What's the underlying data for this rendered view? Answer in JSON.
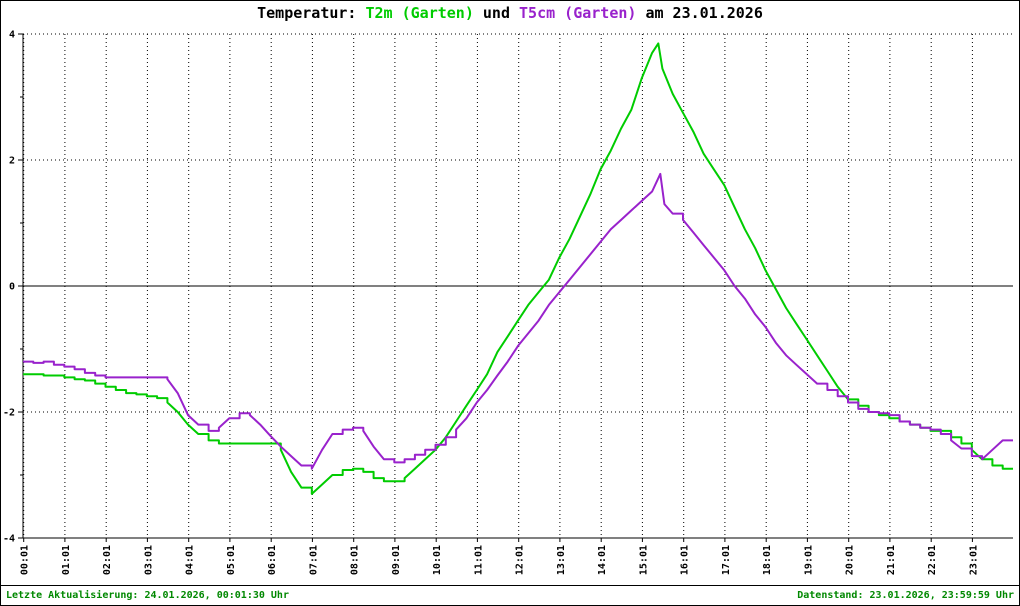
{
  "title": {
    "prefix": "Temperatur: ",
    "series1": "T2m (Garten)",
    "mid": " und ",
    "series2": "T5cm (Garten)",
    "suffix": " am 23.01.2026"
  },
  "colors": {
    "t2m": "#00cc00",
    "t5cm": "#9922cc",
    "footer_text": "#008800",
    "axis": "#000000",
    "background": "#ffffff"
  },
  "footer": {
    "left": "Letzte Aktualisierung: 24.01.2026, 00:01:30 Uhr",
    "right": "Datenstand: 23.01.2026, 23:59:59 Uhr"
  },
  "chart_data": {
    "type": "line",
    "title": "Temperatur: T2m (Garten) und T5cm (Garten) am 23.01.2026",
    "xlabel": "",
    "ylabel": "",
    "ylim": [
      -4,
      4
    ],
    "xlim_hours": [
      0,
      24
    ],
    "yticks": [
      -4,
      -2,
      0,
      2,
      4
    ],
    "yticks_minor": [
      -3,
      -1,
      1,
      3
    ],
    "grid": "dotted",
    "legend_position": "in-title",
    "xtick_labels": [
      "00:01",
      "01:01",
      "02:01",
      "03:01",
      "04:01",
      "05:01",
      "06:01",
      "07:01",
      "08:01",
      "09:01",
      "10:01",
      "11:01",
      "12:01",
      "13:01",
      "14:01",
      "15:01",
      "16:01",
      "17:01",
      "18:01",
      "19:01",
      "20:01",
      "21:01",
      "22:01",
      "23:01"
    ],
    "series": [
      {
        "key": "t2m",
        "name": "T2m (Garten)",
        "color": "#00cc00",
        "points": [
          [
            0,
            -1.4
          ],
          [
            0.25,
            -1.4
          ],
          [
            0.5,
            -1.42
          ],
          [
            0.75,
            -1.42
          ],
          [
            1,
            -1.45
          ],
          [
            1.25,
            -1.48
          ],
          [
            1.5,
            -1.5
          ],
          [
            1.75,
            -1.55
          ],
          [
            2,
            -1.6
          ],
          [
            2.25,
            -1.65
          ],
          [
            2.5,
            -1.7
          ],
          [
            2.75,
            -1.72
          ],
          [
            3,
            -1.75
          ],
          [
            3.25,
            -1.78
          ],
          [
            3.5,
            -1.85
          ],
          [
            3.75,
            -2.0
          ],
          [
            4,
            -2.2
          ],
          [
            4.25,
            -2.35
          ],
          [
            4.5,
            -2.45
          ],
          [
            4.75,
            -2.5
          ],
          [
            5,
            -2.5
          ],
          [
            5.25,
            -2.5
          ],
          [
            5.5,
            -2.5
          ],
          [
            5.75,
            -2.5
          ],
          [
            6,
            -2.5
          ],
          [
            6.25,
            -2.6
          ],
          [
            6.5,
            -2.95
          ],
          [
            6.75,
            -3.2
          ],
          [
            7,
            -3.3
          ],
          [
            7.25,
            -3.15
          ],
          [
            7.5,
            -3.0
          ],
          [
            7.75,
            -2.92
          ],
          [
            8,
            -2.9
          ],
          [
            8.25,
            -2.95
          ],
          [
            8.5,
            -3.05
          ],
          [
            8.75,
            -3.1
          ],
          [
            9,
            -3.1
          ],
          [
            9.25,
            -3.05
          ],
          [
            9.5,
            -2.9
          ],
          [
            9.75,
            -2.75
          ],
          [
            10,
            -2.6
          ],
          [
            10.25,
            -2.4
          ],
          [
            10.5,
            -2.15
          ],
          [
            10.75,
            -1.9
          ],
          [
            11,
            -1.65
          ],
          [
            11.25,
            -1.4
          ],
          [
            11.5,
            -1.05
          ],
          [
            11.75,
            -0.8
          ],
          [
            12,
            -0.55
          ],
          [
            12.25,
            -0.3
          ],
          [
            12.5,
            -0.1
          ],
          [
            12.75,
            0.1
          ],
          [
            13,
            0.45
          ],
          [
            13.25,
            0.75
          ],
          [
            13.5,
            1.1
          ],
          [
            13.75,
            1.45
          ],
          [
            14,
            1.85
          ],
          [
            14.25,
            2.15
          ],
          [
            14.5,
            2.5
          ],
          [
            14.75,
            2.8
          ],
          [
            15,
            3.3
          ],
          [
            15.25,
            3.7
          ],
          [
            15.4,
            3.85
          ],
          [
            15.5,
            3.45
          ],
          [
            15.75,
            3.05
          ],
          [
            16,
            2.75
          ],
          [
            16.25,
            2.45
          ],
          [
            16.5,
            2.1
          ],
          [
            16.75,
            1.85
          ],
          [
            17,
            1.6
          ],
          [
            17.25,
            1.25
          ],
          [
            17.5,
            0.9
          ],
          [
            17.75,
            0.6
          ],
          [
            18,
            0.25
          ],
          [
            18.25,
            -0.05
          ],
          [
            18.5,
            -0.35
          ],
          [
            18.75,
            -0.6
          ],
          [
            19,
            -0.85
          ],
          [
            19.25,
            -1.1
          ],
          [
            19.5,
            -1.35
          ],
          [
            19.75,
            -1.6
          ],
          [
            20,
            -1.8
          ],
          [
            20.25,
            -1.9
          ],
          [
            20.5,
            -2.0
          ],
          [
            20.75,
            -2.05
          ],
          [
            21,
            -2.1
          ],
          [
            21.25,
            -2.15
          ],
          [
            21.5,
            -2.2
          ],
          [
            21.75,
            -2.25
          ],
          [
            22,
            -2.3
          ],
          [
            22.25,
            -2.3
          ],
          [
            22.5,
            -2.4
          ],
          [
            22.75,
            -2.5
          ],
          [
            23,
            -2.6
          ],
          [
            23.25,
            -2.75
          ],
          [
            23.5,
            -2.85
          ],
          [
            23.75,
            -2.9
          ],
          [
            24,
            -2.9
          ]
        ]
      },
      {
        "key": "t5cm",
        "name": "T5cm (Garten)",
        "color": "#9922cc",
        "points": [
          [
            0,
            -1.2
          ],
          [
            0.25,
            -1.22
          ],
          [
            0.5,
            -1.2
          ],
          [
            0.75,
            -1.25
          ],
          [
            1,
            -1.28
          ],
          [
            1.25,
            -1.32
          ],
          [
            1.5,
            -1.38
          ],
          [
            1.75,
            -1.42
          ],
          [
            2,
            -1.45
          ],
          [
            2.25,
            -1.45
          ],
          [
            2.5,
            -1.45
          ],
          [
            2.75,
            -1.45
          ],
          [
            3,
            -1.45
          ],
          [
            3.25,
            -1.45
          ],
          [
            3.5,
            -1.48
          ],
          [
            3.75,
            -1.7
          ],
          [
            4,
            -2.05
          ],
          [
            4.25,
            -2.2
          ],
          [
            4.5,
            -2.3
          ],
          [
            4.75,
            -2.25
          ],
          [
            5,
            -2.1
          ],
          [
            5.25,
            -2.02
          ],
          [
            5.5,
            -2.05
          ],
          [
            5.75,
            -2.2
          ],
          [
            6,
            -2.38
          ],
          [
            6.25,
            -2.55
          ],
          [
            6.5,
            -2.7
          ],
          [
            6.75,
            -2.85
          ],
          [
            7,
            -2.9
          ],
          [
            7.25,
            -2.6
          ],
          [
            7.5,
            -2.35
          ],
          [
            7.75,
            -2.28
          ],
          [
            8,
            -2.25
          ],
          [
            8.25,
            -2.3
          ],
          [
            8.5,
            -2.55
          ],
          [
            8.75,
            -2.75
          ],
          [
            9,
            -2.8
          ],
          [
            9.25,
            -2.75
          ],
          [
            9.5,
            -2.68
          ],
          [
            9.75,
            -2.6
          ],
          [
            10,
            -2.52
          ],
          [
            10.25,
            -2.4
          ],
          [
            10.5,
            -2.28
          ],
          [
            10.75,
            -2.1
          ],
          [
            11,
            -1.85
          ],
          [
            11.25,
            -1.65
          ],
          [
            11.5,
            -1.42
          ],
          [
            11.75,
            -1.2
          ],
          [
            12,
            -0.95
          ],
          [
            12.25,
            -0.75
          ],
          [
            12.5,
            -0.55
          ],
          [
            12.75,
            -0.3
          ],
          [
            13,
            -0.1
          ],
          [
            13.25,
            0.1
          ],
          [
            13.5,
            0.3
          ],
          [
            13.75,
            0.5
          ],
          [
            14,
            0.7
          ],
          [
            14.25,
            0.9
          ],
          [
            14.5,
            1.05
          ],
          [
            14.75,
            1.2
          ],
          [
            15,
            1.35
          ],
          [
            15.25,
            1.5
          ],
          [
            15.45,
            1.78
          ],
          [
            15.55,
            1.3
          ],
          [
            15.75,
            1.15
          ],
          [
            16,
            1.05
          ],
          [
            16.25,
            0.85
          ],
          [
            16.5,
            0.65
          ],
          [
            16.75,
            0.45
          ],
          [
            17,
            0.25
          ],
          [
            17.25,
            0.0
          ],
          [
            17.5,
            -0.2
          ],
          [
            17.75,
            -0.45
          ],
          [
            18,
            -0.65
          ],
          [
            18.25,
            -0.9
          ],
          [
            18.5,
            -1.1
          ],
          [
            18.75,
            -1.25
          ],
          [
            19,
            -1.4
          ],
          [
            19.25,
            -1.55
          ],
          [
            19.5,
            -1.65
          ],
          [
            19.75,
            -1.75
          ],
          [
            20,
            -1.85
          ],
          [
            20.25,
            -1.95
          ],
          [
            20.5,
            -2.0
          ],
          [
            20.75,
            -2.02
          ],
          [
            21,
            -2.05
          ],
          [
            21.25,
            -2.15
          ],
          [
            21.5,
            -2.2
          ],
          [
            21.75,
            -2.25
          ],
          [
            22,
            -2.28
          ],
          [
            22.25,
            -2.35
          ],
          [
            22.5,
            -2.45
          ],
          [
            22.75,
            -2.58
          ],
          [
            23,
            -2.7
          ],
          [
            23.25,
            -2.75
          ],
          [
            23.5,
            -2.6
          ],
          [
            23.75,
            -2.45
          ],
          [
            24,
            -2.45
          ]
        ]
      }
    ]
  }
}
